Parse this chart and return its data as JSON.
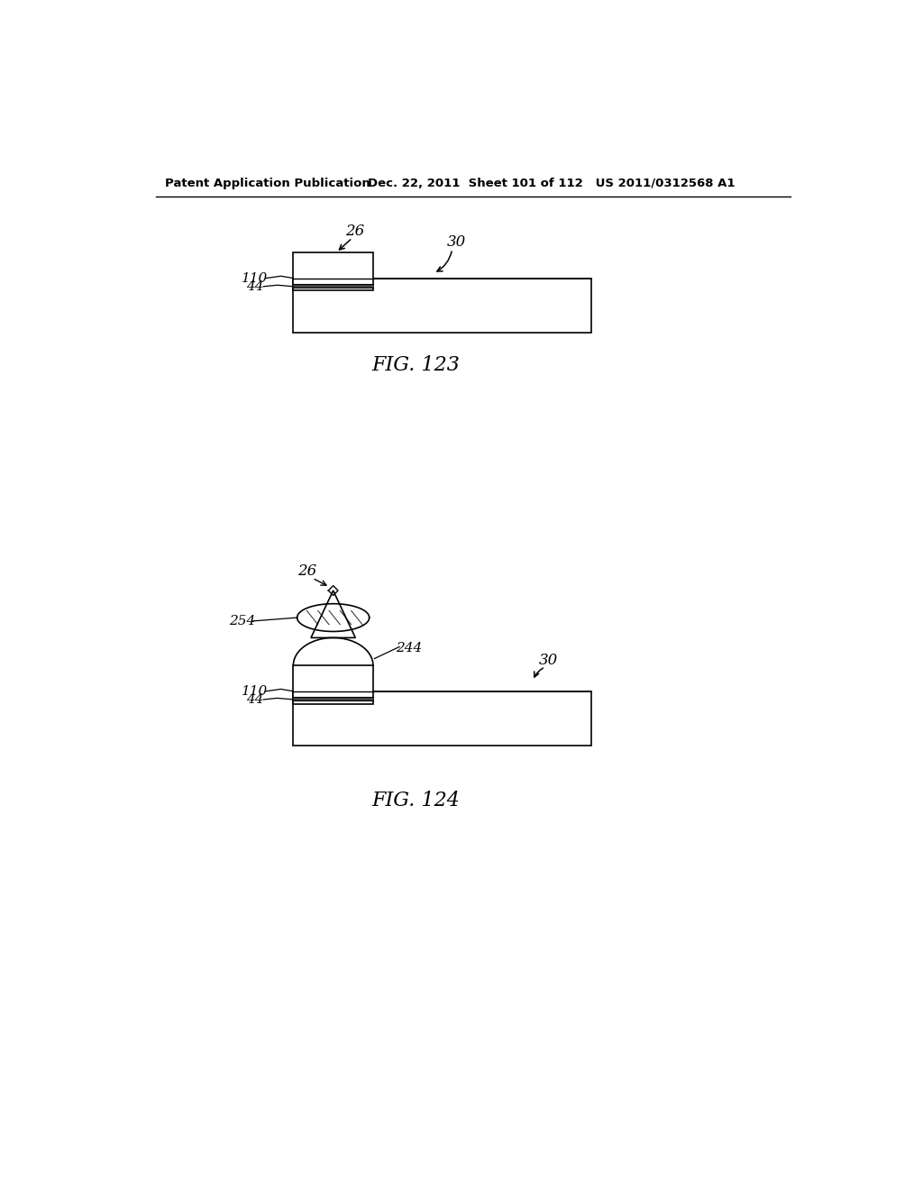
{
  "bg_color": "#ffffff",
  "header_left": "Patent Application Publication",
  "header_mid": "Dec. 22, 2011  Sheet 101 of 112   US 2011/0312568 A1",
  "fig123_caption": "FIG. 123",
  "fig124_caption": "FIG. 124",
  "lbl_30": "30",
  "lbl_26": "26",
  "lbl_110": "110",
  "lbl_44": "44",
  "lbl_254": "254",
  "lbl_244": "244"
}
